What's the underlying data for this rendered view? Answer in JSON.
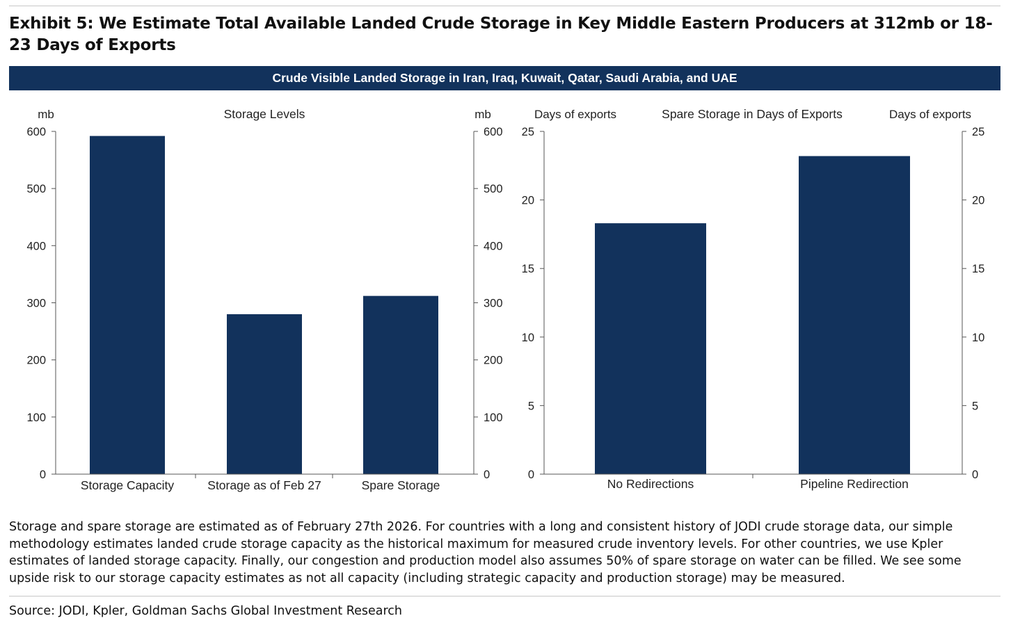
{
  "exhibit": {
    "title": "Exhibit 5: We Estimate Total Available Landed Crude Storage in Key Middle Eastern Producers at 312mb or 18-23 Days of Exports"
  },
  "banner": {
    "text": "Crude Visible Landed Storage in Iran, Iraq, Kuwait, Qatar, Saudi Arabia, and UAE"
  },
  "colors": {
    "bar": "#12325c",
    "banner": "#12325c",
    "axis": "#555555"
  },
  "chart_data": [
    {
      "type": "bar",
      "title": "Storage Levels",
      "ylabel": "mb",
      "ylabel_right": "mb",
      "categories": [
        "Storage Capacity",
        "Storage as of Feb 27",
        "Spare Storage"
      ],
      "values": [
        592,
        280,
        312
      ],
      "ylim": [
        0,
        600
      ],
      "yticks": [
        0,
        100,
        200,
        300,
        400,
        500,
        600
      ],
      "grid": false
    },
    {
      "type": "bar",
      "title": "Spare Storage in Days of Exports",
      "ylabel": "Days of exports",
      "ylabel_right": "Days of exports",
      "categories": [
        "No Redirections",
        "Pipeline Redirection"
      ],
      "values": [
        18.3,
        23.2
      ],
      "ylim": [
        0,
        25
      ],
      "yticks": [
        0,
        5,
        10,
        15,
        20,
        25
      ],
      "grid": false
    }
  ],
  "footnote": "Storage and spare storage are estimated as of February 27th 2026. For countries with a long and consistent history of JODI crude storage data, our simple methodology estimates landed crude storage capacity as the historical maximum for measured crude inventory levels. For other countries, we use Kpler estimates of landed storage capacity. Finally, our congestion and production model also assumes 50% of spare storage on water can be filled. We see some upside risk to our storage capacity estimates as not all capacity (including strategic capacity and production storage) may be measured.",
  "source": "Source: JODI, Kpler, Goldman Sachs Global Investment Research"
}
